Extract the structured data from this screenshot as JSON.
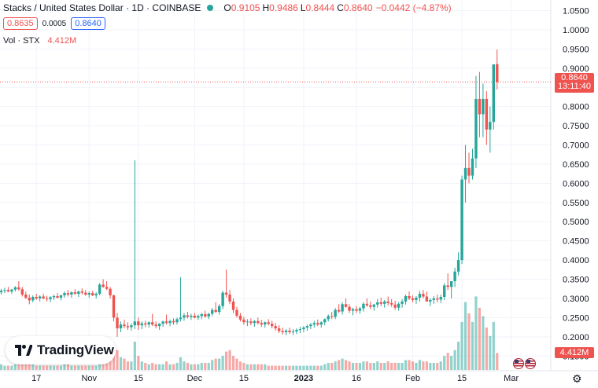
{
  "header": {
    "title": "Stacks / United States Dollar · 1D · COINBASE",
    "ohlc": [
      {
        "label": "O",
        "value": "0.9105"
      },
      {
        "label": "H",
        "value": "0.9486"
      },
      {
        "label": "L",
        "value": "0.8444"
      },
      {
        "label": "C",
        "value": "0.8640"
      }
    ],
    "change": "−0.0442 (−4.87%)",
    "sell_price": "0.8635",
    "spread": "0.0005",
    "buy_price": "0.8640",
    "volume_label": "Vol · STX",
    "volume_value": "4.412M"
  },
  "price_badge": {
    "price": "0.8640",
    "countdown": "13:11:40"
  },
  "volume_badge": "4.412M",
  "logo_text": "TradingView",
  "colors": {
    "up": "#26a69a",
    "down": "#ef5350",
    "grid": "#f0f3fa"
  },
  "icons": {
    "settings": "gear-icon",
    "flag": "us-flag-icon",
    "logo": "tradingview-logo-icon"
  },
  "chart_data": {
    "type": "candlestick",
    "price_ticks": [
      "1.0500",
      "1.0000",
      "0.9500",
      "0.9000",
      "0.8500",
      "0.8000",
      "0.7500",
      "0.7000",
      "0.6500",
      "0.6000",
      "0.5500",
      "0.5000",
      "0.4500",
      "0.4000",
      "0.3500",
      "0.3000",
      "0.2500",
      "0.2000",
      "0.1500"
    ],
    "time_ticks": [
      {
        "label": "17",
        "index": 10
      },
      {
        "label": "Nov",
        "index": 25
      },
      {
        "label": "15",
        "index": 39
      },
      {
        "label": "Dec",
        "index": 55
      },
      {
        "label": "15",
        "index": 69
      },
      {
        "label": "2023",
        "index": 86
      },
      {
        "label": "16",
        "index": 101
      },
      {
        "label": "Feb",
        "index": 117
      },
      {
        "label": "15",
        "index": 131
      },
      {
        "label": "Mar",
        "index": 145
      }
    ],
    "ylim": [
      0.1362,
      1.0613
    ],
    "last_price": 0.864,
    "candles": [
      [
        0.316,
        0.325,
        0.31,
        0.32,
        4
      ],
      [
        0.32,
        0.328,
        0.314,
        0.322,
        3
      ],
      [
        0.322,
        0.33,
        0.316,
        0.318,
        3
      ],
      [
        0.318,
        0.325,
        0.312,
        0.323,
        3
      ],
      [
        0.323,
        0.332,
        0.318,
        0.329,
        4
      ],
      [
        0.329,
        0.345,
        0.32,
        0.324,
        5
      ],
      [
        0.324,
        0.33,
        0.305,
        0.31,
        6
      ],
      [
        0.31,
        0.318,
        0.298,
        0.302,
        5
      ],
      [
        0.302,
        0.31,
        0.285,
        0.295,
        6
      ],
      [
        0.295,
        0.308,
        0.29,
        0.304,
        4
      ],
      [
        0.304,
        0.312,
        0.296,
        0.3,
        3
      ],
      [
        0.3,
        0.308,
        0.292,
        0.305,
        3
      ],
      [
        0.305,
        0.312,
        0.298,
        0.3,
        3
      ],
      [
        0.3,
        0.307,
        0.292,
        0.298,
        3
      ],
      [
        0.298,
        0.306,
        0.29,
        0.303,
        3
      ],
      [
        0.303,
        0.31,
        0.296,
        0.306,
        3
      ],
      [
        0.306,
        0.314,
        0.3,
        0.302,
        3
      ],
      [
        0.302,
        0.31,
        0.295,
        0.308,
        3
      ],
      [
        0.308,
        0.318,
        0.302,
        0.314,
        4
      ],
      [
        0.314,
        0.322,
        0.305,
        0.31,
        4
      ],
      [
        0.31,
        0.318,
        0.302,
        0.316,
        3
      ],
      [
        0.316,
        0.324,
        0.31,
        0.312,
        3
      ],
      [
        0.312,
        0.32,
        0.304,
        0.318,
        3
      ],
      [
        0.318,
        0.326,
        0.31,
        0.315,
        3
      ],
      [
        0.315,
        0.322,
        0.307,
        0.31,
        3
      ],
      [
        0.31,
        0.318,
        0.302,
        0.314,
        3
      ],
      [
        0.314,
        0.32,
        0.306,
        0.308,
        3
      ],
      [
        0.308,
        0.316,
        0.3,
        0.312,
        3
      ],
      [
        0.312,
        0.34,
        0.308,
        0.336,
        6
      ],
      [
        0.336,
        0.35,
        0.328,
        0.33,
        6
      ],
      [
        0.33,
        0.345,
        0.322,
        0.325,
        5
      ],
      [
        0.325,
        0.33,
        0.3,
        0.308,
        7
      ],
      [
        0.308,
        0.31,
        0.24,
        0.25,
        12
      ],
      [
        0.25,
        0.262,
        0.2,
        0.222,
        14
      ],
      [
        0.222,
        0.24,
        0.212,
        0.232,
        9
      ],
      [
        0.232,
        0.245,
        0.222,
        0.228,
        8
      ],
      [
        0.228,
        0.238,
        0.218,
        0.225,
        6
      ],
      [
        0.225,
        0.235,
        0.216,
        0.23,
        6
      ],
      [
        0.23,
        0.66,
        0.22,
        0.24,
        20
      ],
      [
        0.24,
        0.25,
        0.218,
        0.23,
        10
      ],
      [
        0.23,
        0.24,
        0.22,
        0.235,
        6
      ],
      [
        0.235,
        0.242,
        0.225,
        0.232,
        5
      ],
      [
        0.232,
        0.24,
        0.224,
        0.238,
        4
      ],
      [
        0.238,
        0.26,
        0.228,
        0.232,
        5
      ],
      [
        0.232,
        0.24,
        0.222,
        0.228,
        4
      ],
      [
        0.228,
        0.236,
        0.218,
        0.234,
        4
      ],
      [
        0.234,
        0.242,
        0.226,
        0.24,
        4
      ],
      [
        0.24,
        0.258,
        0.232,
        0.236,
        6
      ],
      [
        0.236,
        0.245,
        0.228,
        0.241,
        4
      ],
      [
        0.241,
        0.248,
        0.232,
        0.238,
        4
      ],
      [
        0.238,
        0.25,
        0.232,
        0.246,
        5
      ],
      [
        0.246,
        0.355,
        0.24,
        0.25,
        9
      ],
      [
        0.25,
        0.262,
        0.242,
        0.256,
        6
      ],
      [
        0.256,
        0.265,
        0.248,
        0.252,
        5
      ],
      [
        0.252,
        0.26,
        0.244,
        0.255,
        4
      ],
      [
        0.255,
        0.262,
        0.248,
        0.25,
        4
      ],
      [
        0.25,
        0.258,
        0.244,
        0.254,
        4
      ],
      [
        0.254,
        0.262,
        0.246,
        0.259,
        5
      ],
      [
        0.259,
        0.268,
        0.25,
        0.253,
        5
      ],
      [
        0.253,
        0.262,
        0.246,
        0.26,
        5
      ],
      [
        0.26,
        0.275,
        0.254,
        0.27,
        7
      ],
      [
        0.27,
        0.29,
        0.262,
        0.265,
        8
      ],
      [
        0.265,
        0.285,
        0.258,
        0.28,
        8
      ],
      [
        0.28,
        0.32,
        0.272,
        0.315,
        10
      ],
      [
        0.315,
        0.375,
        0.302,
        0.31,
        13
      ],
      [
        0.31,
        0.322,
        0.285,
        0.292,
        14
      ],
      [
        0.292,
        0.3,
        0.262,
        0.27,
        10
      ],
      [
        0.27,
        0.278,
        0.25,
        0.255,
        8
      ],
      [
        0.255,
        0.262,
        0.24,
        0.245,
        6
      ],
      [
        0.245,
        0.252,
        0.232,
        0.238,
        5
      ],
      [
        0.238,
        0.246,
        0.228,
        0.24,
        4
      ],
      [
        0.24,
        0.248,
        0.23,
        0.236,
        4
      ],
      [
        0.236,
        0.244,
        0.226,
        0.241,
        4
      ],
      [
        0.241,
        0.25,
        0.232,
        0.236,
        4
      ],
      [
        0.236,
        0.244,
        0.226,
        0.232,
        4
      ],
      [
        0.232,
        0.24,
        0.224,
        0.238,
        4
      ],
      [
        0.238,
        0.246,
        0.23,
        0.234,
        3
      ],
      [
        0.234,
        0.242,
        0.222,
        0.228,
        3
      ],
      [
        0.228,
        0.236,
        0.216,
        0.222,
        3
      ],
      [
        0.222,
        0.23,
        0.21,
        0.215,
        3
      ],
      [
        0.215,
        0.224,
        0.206,
        0.212,
        3
      ],
      [
        0.212,
        0.22,
        0.204,
        0.216,
        3
      ],
      [
        0.216,
        0.224,
        0.208,
        0.212,
        3
      ],
      [
        0.212,
        0.22,
        0.205,
        0.214,
        3
      ],
      [
        0.214,
        0.222,
        0.207,
        0.218,
        3
      ],
      [
        0.218,
        0.226,
        0.21,
        0.22,
        3
      ],
      [
        0.22,
        0.228,
        0.212,
        0.224,
        3
      ],
      [
        0.224,
        0.232,
        0.216,
        0.228,
        3
      ],
      [
        0.228,
        0.236,
        0.22,
        0.232,
        3
      ],
      [
        0.232,
        0.242,
        0.224,
        0.236,
        3
      ],
      [
        0.236,
        0.245,
        0.228,
        0.232,
        3
      ],
      [
        0.232,
        0.24,
        0.224,
        0.238,
        3
      ],
      [
        0.238,
        0.248,
        0.23,
        0.246,
        4
      ],
      [
        0.246,
        0.258,
        0.24,
        0.254,
        5
      ],
      [
        0.254,
        0.265,
        0.246,
        0.252,
        5
      ],
      [
        0.252,
        0.275,
        0.246,
        0.27,
        6
      ],
      [
        0.27,
        0.285,
        0.262,
        0.266,
        7
      ],
      [
        0.266,
        0.29,
        0.258,
        0.285,
        8
      ],
      [
        0.285,
        0.3,
        0.276,
        0.278,
        7
      ],
      [
        0.278,
        0.285,
        0.262,
        0.268,
        6
      ],
      [
        0.268,
        0.276,
        0.256,
        0.272,
        5
      ],
      [
        0.272,
        0.28,
        0.262,
        0.268,
        5
      ],
      [
        0.268,
        0.278,
        0.26,
        0.274,
        5
      ],
      [
        0.274,
        0.29,
        0.266,
        0.286,
        6
      ],
      [
        0.286,
        0.3,
        0.278,
        0.282,
        6
      ],
      [
        0.282,
        0.292,
        0.272,
        0.278,
        5
      ],
      [
        0.278,
        0.286,
        0.268,
        0.284,
        5
      ],
      [
        0.284,
        0.298,
        0.276,
        0.29,
        6
      ],
      [
        0.29,
        0.302,
        0.28,
        0.286,
        5
      ],
      [
        0.286,
        0.296,
        0.276,
        0.292,
        5
      ],
      [
        0.292,
        0.305,
        0.282,
        0.288,
        6
      ],
      [
        0.288,
        0.298,
        0.278,
        0.284,
        5
      ],
      [
        0.284,
        0.294,
        0.27,
        0.276,
        5
      ],
      [
        0.276,
        0.29,
        0.268,
        0.286,
        5
      ],
      [
        0.286,
        0.298,
        0.276,
        0.292,
        5
      ],
      [
        0.292,
        0.31,
        0.284,
        0.306,
        7
      ],
      [
        0.306,
        0.318,
        0.296,
        0.3,
        7
      ],
      [
        0.3,
        0.308,
        0.29,
        0.296,
        6
      ],
      [
        0.296,
        0.306,
        0.286,
        0.302,
        5
      ],
      [
        0.302,
        0.32,
        0.292,
        0.312,
        7
      ],
      [
        0.312,
        0.322,
        0.3,
        0.305,
        6
      ],
      [
        0.305,
        0.318,
        0.296,
        0.292,
        6
      ],
      [
        0.292,
        0.3,
        0.28,
        0.296,
        5
      ],
      [
        0.296,
        0.306,
        0.286,
        0.3,
        5
      ],
      [
        0.3,
        0.31,
        0.29,
        0.297,
        5
      ],
      [
        0.297,
        0.31,
        0.288,
        0.304,
        6
      ],
      [
        0.304,
        0.34,
        0.296,
        0.334,
        10
      ],
      [
        0.334,
        0.365,
        0.322,
        0.33,
        12
      ],
      [
        0.33,
        0.345,
        0.3,
        0.345,
        10
      ],
      [
        0.345,
        0.38,
        0.33,
        0.37,
        14
      ],
      [
        0.37,
        0.42,
        0.36,
        0.4,
        20
      ],
      [
        0.4,
        0.62,
        0.39,
        0.61,
        34
      ],
      [
        0.61,
        0.7,
        0.55,
        0.64,
        48
      ],
      [
        0.64,
        0.68,
        0.6,
        0.62,
        40
      ],
      [
        0.62,
        0.69,
        0.61,
        0.665,
        34
      ],
      [
        0.665,
        0.88,
        0.64,
        0.82,
        52
      ],
      [
        0.82,
        0.89,
        0.72,
        0.78,
        44
      ],
      [
        0.78,
        0.86,
        0.72,
        0.82,
        38
      ],
      [
        0.82,
        0.84,
        0.7,
        0.74,
        30
      ],
      [
        0.74,
        0.8,
        0.68,
        0.76,
        24
      ],
      [
        0.76,
        0.91,
        0.74,
        0.91,
        34
      ],
      [
        0.9105,
        0.9486,
        0.8444,
        0.864,
        12
      ]
    ]
  }
}
